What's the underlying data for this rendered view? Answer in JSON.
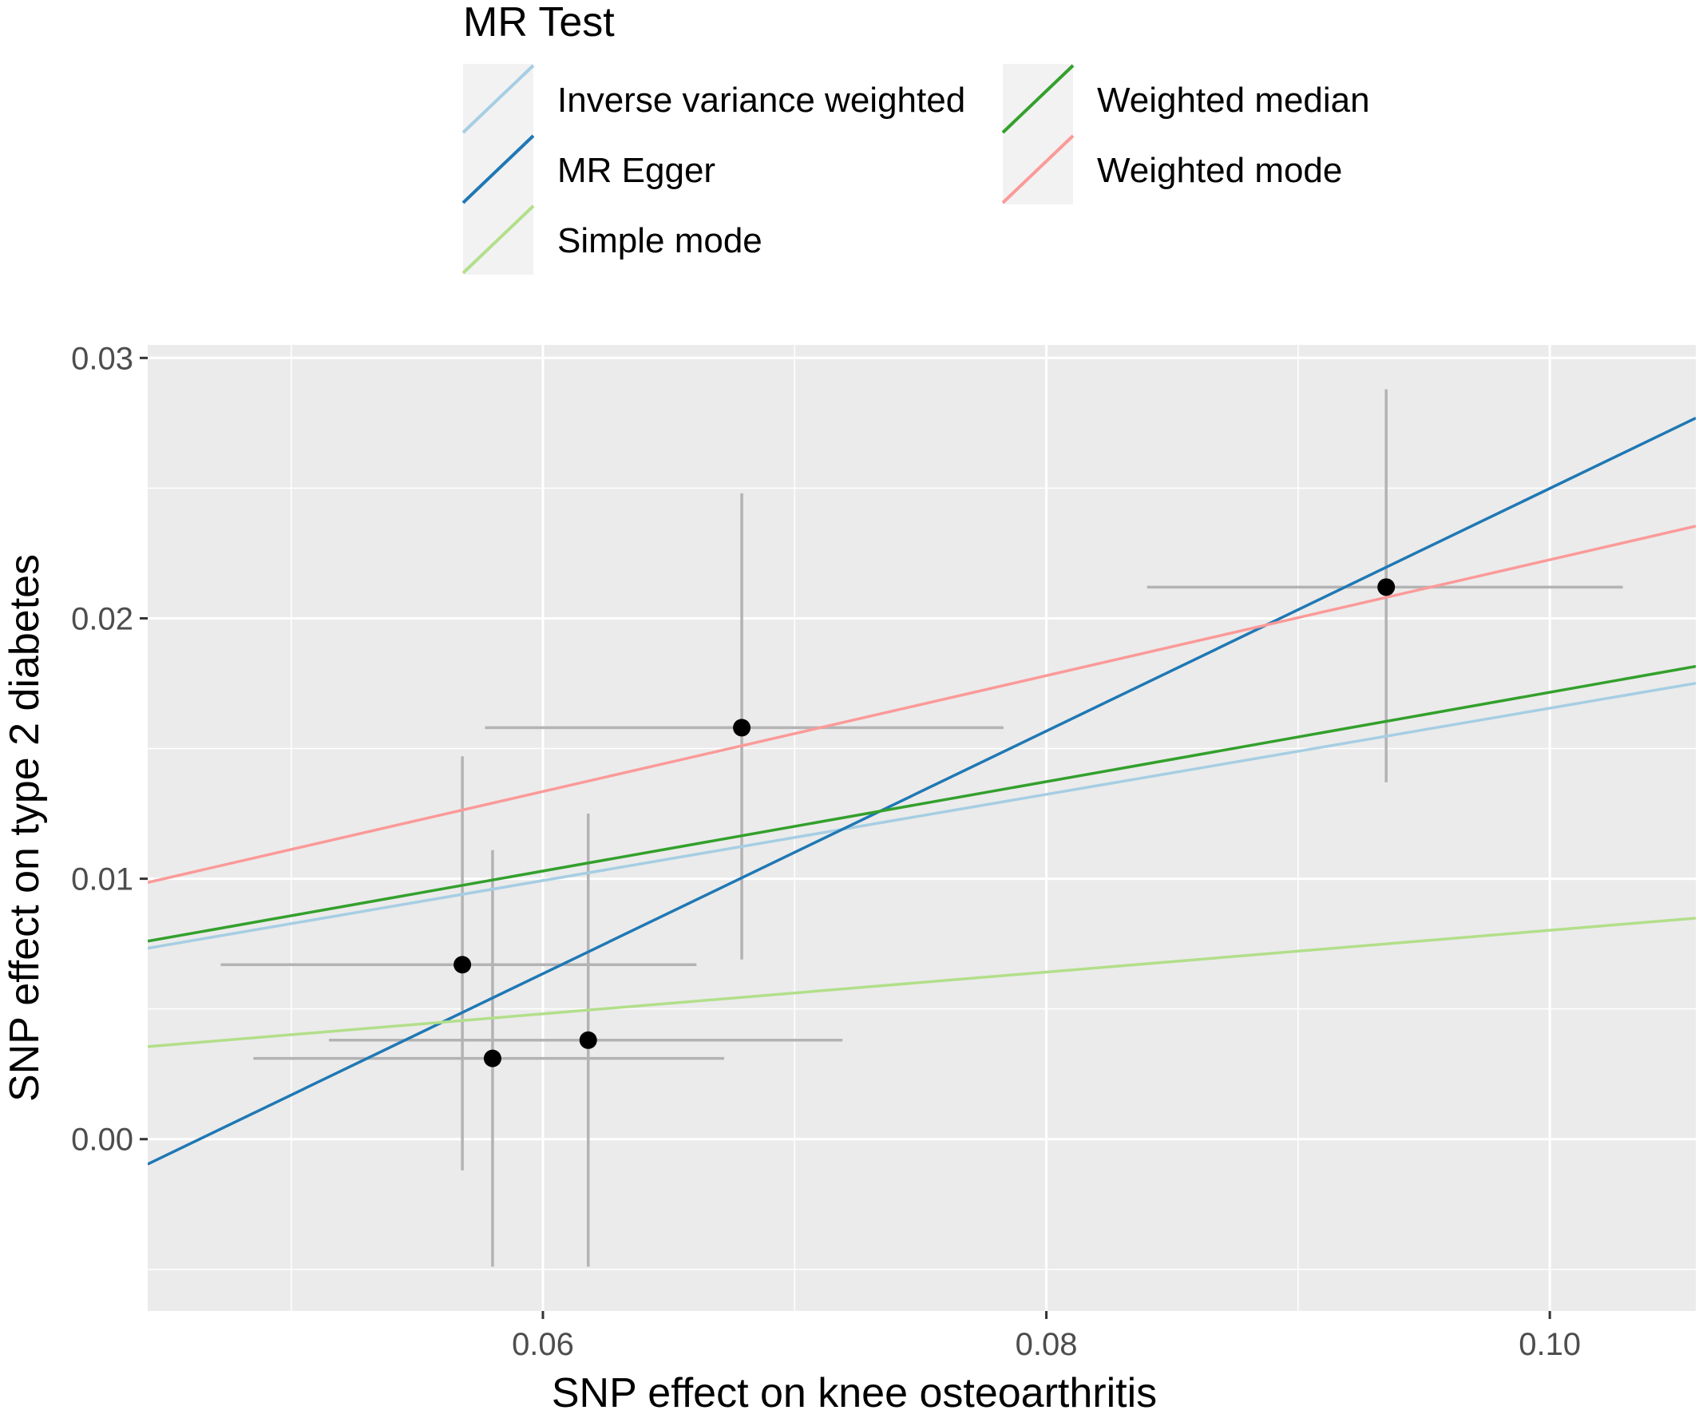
{
  "chart_data": {
    "type": "scatter",
    "xlabel": "SNP effect on knee osteoarthritis",
    "ylabel": "SNP effect on type 2 diabetes",
    "xlim": [
      0.0443,
      0.1058
    ],
    "ylim": [
      -0.0066,
      0.0305
    ],
    "x_ticks": [
      0.06,
      0.08,
      0.1
    ],
    "x_tick_labels": [
      "0.06",
      "0.08",
      "0.10"
    ],
    "y_ticks": [
      0.0,
      0.01,
      0.02,
      0.03
    ],
    "y_tick_labels": [
      "0.00",
      "0.01",
      "0.02",
      "0.03"
    ],
    "grid": true,
    "legend": {
      "title": "MR Test",
      "position": "top",
      "entries": [
        {
          "name": "Inverse variance weighted",
          "color": "#a6cee3"
        },
        {
          "name": "MR Egger",
          "color": "#1f78b4"
        },
        {
          "name": "Simple mode",
          "color": "#b2df8a"
        },
        {
          "name": "Weighted median",
          "color": "#33a02c"
        },
        {
          "name": "Weighted mode",
          "color": "#fb9a99"
        }
      ]
    },
    "points": [
      {
        "x": 0.0568,
        "y": 0.0067,
        "x_lo": 0.0472,
        "x_hi": 0.0661,
        "y_lo": -0.0012,
        "y_hi": 0.0147
      },
      {
        "x": 0.058,
        "y": 0.0031,
        "x_lo": 0.0485,
        "x_hi": 0.0672,
        "y_lo": -0.0049,
        "y_hi": 0.0111
      },
      {
        "x": 0.0618,
        "y": 0.0038,
        "x_lo": 0.0515,
        "x_hi": 0.0719,
        "y_lo": -0.0049,
        "y_hi": 0.0125
      },
      {
        "x": 0.0679,
        "y": 0.0158,
        "x_lo": 0.0577,
        "x_hi": 0.0783,
        "y_lo": 0.0069,
        "y_hi": 0.0248
      },
      {
        "x": 0.0935,
        "y": 0.0212,
        "x_lo": 0.084,
        "x_hi": 0.1029,
        "y_lo": 0.0137,
        "y_hi": 0.0288
      }
    ],
    "lines": [
      {
        "name": "Inverse variance weighted",
        "color": "#a6cee3",
        "intercept": 0,
        "slope": 0.1655
      },
      {
        "name": "MR Egger",
        "color": "#1f78b4",
        "intercept": -0.0216,
        "slope": 0.4659
      },
      {
        "name": "Simple mode",
        "color": "#b2df8a",
        "intercept": 0,
        "slope": 0.0802
      },
      {
        "name": "Weighted median",
        "color": "#33a02c",
        "intercept": 0,
        "slope": 0.1716
      },
      {
        "name": "Weighted mode",
        "color": "#fb9a99",
        "intercept": 0,
        "slope": 0.2225
      }
    ]
  }
}
